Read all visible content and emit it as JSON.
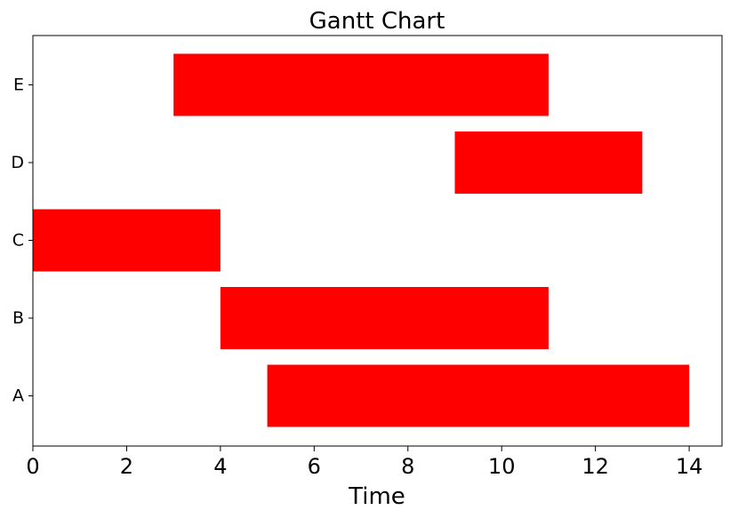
{
  "chart_data": {
    "type": "bar",
    "orientation": "horizontal",
    "title": "Gantt Chart",
    "xlabel": "Time",
    "ylabel": "",
    "xlim": [
      0,
      14.7
    ],
    "xticks": [
      0,
      2,
      4,
      6,
      8,
      10,
      12,
      14
    ],
    "grid": false,
    "legend": "none",
    "bar_color": "#ff0000",
    "tasks": [
      {
        "label": "A",
        "start": 5,
        "end": 14
      },
      {
        "label": "B",
        "start": 4,
        "end": 11
      },
      {
        "label": "C",
        "start": 0,
        "end": 4
      },
      {
        "label": "D",
        "start": 9,
        "end": 13
      },
      {
        "label": "E",
        "start": 3,
        "end": 11
      }
    ]
  }
}
